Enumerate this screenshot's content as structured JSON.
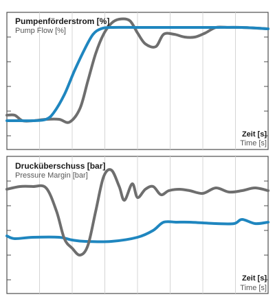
{
  "colors": {
    "frame": "#4d4d4d",
    "grid": "#d4d4d4",
    "blue": "#1f86bf",
    "gray": "#6e6e6e",
    "title": "#1a1a1a",
    "subtitle": "#555555"
  },
  "chart_data": [
    {
      "type": "line",
      "title": "Pumpenförderstrom [%]",
      "subtitle": "Pump Flow [%]",
      "xlabel": "Zeit [s]",
      "xlabel_sub": "Time [s]",
      "xlim": [
        0,
        10
      ],
      "ylim": [
        0,
        100
      ],
      "grid": true,
      "legend": "none",
      "series": [
        {
          "color": "blue",
          "x": [
            0,
            0.5,
            1,
            1.5,
            1.8,
            2.2,
            2.6,
            3.0,
            3.3,
            3.6,
            4.0,
            5,
            6,
            7,
            8,
            9,
            10
          ],
          "y": [
            21,
            21,
            21,
            22,
            27,
            40,
            58,
            74,
            84,
            88,
            89,
            89,
            89,
            89,
            89,
            89,
            88
          ]
        },
        {
          "color": "gray",
          "x": [
            0,
            0.3,
            0.6,
            1.0,
            1.5,
            2.0,
            2.4,
            2.8,
            3.1,
            3.4,
            3.7,
            4.0,
            4.3,
            4.7,
            5.0,
            5.3,
            5.7,
            6.0,
            6.4,
            6.8,
            7.2,
            7.6,
            8.0,
            8.5,
            9,
            10
          ],
          "y": [
            25,
            25,
            21,
            21,
            22,
            22,
            20,
            30,
            50,
            70,
            84,
            92,
            95,
            94,
            85,
            77,
            75,
            84,
            84,
            82,
            82,
            85,
            89,
            89,
            89,
            88
          ]
        }
      ]
    },
    {
      "type": "line",
      "title": "Drucküberschuss [bar]",
      "subtitle": "Pressure Margin [bar]",
      "xlabel": "Zeit [s]",
      "xlabel_sub": "Time [s]",
      "xlim": [
        0,
        10
      ],
      "ylim": [
        0,
        100
      ],
      "grid": true,
      "legend": "none",
      "series": [
        {
          "color": "blue",
          "x": [
            0,
            0.3,
            1,
            2,
            2.5,
            3,
            4,
            5,
            5.6,
            6.0,
            6.5,
            7,
            8,
            8.7,
            9.0,
            9.5,
            10
          ],
          "y": [
            42,
            40,
            41,
            41,
            39,
            38,
            38,
            41,
            46,
            52,
            52,
            52,
            51,
            51,
            54,
            51,
            52
          ]
        },
        {
          "color": "gray",
          "x": [
            0,
            0.5,
            1,
            1.5,
            1.9,
            2.2,
            2.5,
            2.8,
            3.1,
            3.4,
            3.7,
            4.0,
            4.3,
            4.5,
            4.8,
            5.0,
            5.3,
            5.6,
            5.9,
            6.2,
            6.6,
            7.0,
            7.5,
            8,
            8.5,
            9,
            9.5,
            10
          ],
          "y": [
            76,
            78,
            78,
            77,
            60,
            40,
            33,
            28,
            35,
            60,
            85,
            90,
            78,
            68,
            80,
            70,
            76,
            78,
            72,
            75,
            76,
            75,
            73,
            77,
            74,
            75,
            77,
            75
          ]
        }
      ]
    }
  ]
}
